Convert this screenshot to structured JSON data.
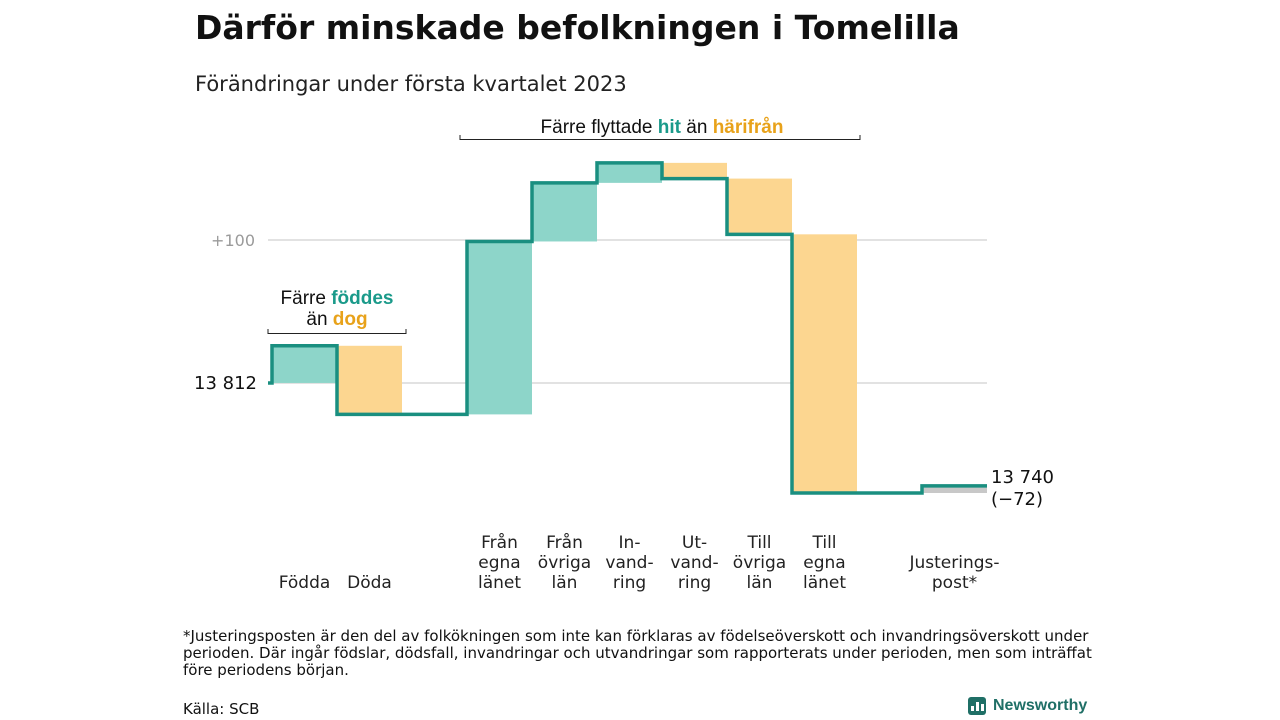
{
  "header": {
    "title": "Därför minskade befolkningen i Tomelilla",
    "subtitle": "Förändringar under första kvartalet 2023"
  },
  "chart_data": {
    "type": "waterfall",
    "start_value": 13812,
    "start_label": "13 812",
    "end_label": "13 740",
    "end_change_label": "(−72)",
    "y_tick_label": "+100",
    "y_tick_value": 100,
    "ylim": [
      -84,
      163
    ],
    "steps": [
      {
        "label": [
          "Födda"
        ],
        "delta": 26,
        "kind": "in"
      },
      {
        "label": [
          "Döda"
        ],
        "delta": -48,
        "kind": "out"
      },
      {
        "label": [
          ""
        ],
        "delta": 0,
        "kind": "gap"
      },
      {
        "label": [
          "Från",
          "egna",
          "länet"
        ],
        "delta": 121,
        "kind": "in"
      },
      {
        "label": [
          "Från",
          "övriga",
          "län"
        ],
        "delta": 41,
        "kind": "in"
      },
      {
        "label": [
          "In-",
          "vand-",
          "ring"
        ],
        "delta": 14,
        "kind": "in"
      },
      {
        "label": [
          "Ut-",
          "vand-",
          "ring"
        ],
        "delta": -11,
        "kind": "out"
      },
      {
        "label": [
          "Till",
          "övriga",
          "län"
        ],
        "delta": -39,
        "kind": "out"
      },
      {
        "label": [
          "Till",
          "egna",
          "länet"
        ],
        "delta": -181,
        "kind": "out"
      },
      {
        "label": [
          ""
        ],
        "delta": 0,
        "kind": "gap"
      },
      {
        "label": [
          "Justerings-",
          "post*"
        ],
        "delta": 5,
        "kind": "adjust"
      }
    ],
    "annotations": {
      "birth": {
        "line1": "Färre ",
        "line1_hl": "föddes",
        "line2": "än ",
        "line2_hl": "dog"
      },
      "migration": {
        "prefix": "Färre flyttade ",
        "hit": "hit",
        "middle": " än ",
        "harifran": "härifrån"
      }
    },
    "colors": {
      "in": "#8dd5c9",
      "out": "#fcd690",
      "adjust": "#c8c8c8",
      "line": "#1a8f80",
      "hit": "#1a9a8a",
      "harifran": "#e8a21a"
    }
  },
  "footer": {
    "footnote": "*Justeringsposten är den del av folkökningen som inte kan förklaras av födelseöverskott och invandringsöverskott under perioden. Där ingår födslar, dödsfall, invandringar och utvandringar som rapporterats under perioden, men som inträffat före periodens början.",
    "source": "Källa: SCB",
    "brand": "Newsworthy"
  }
}
